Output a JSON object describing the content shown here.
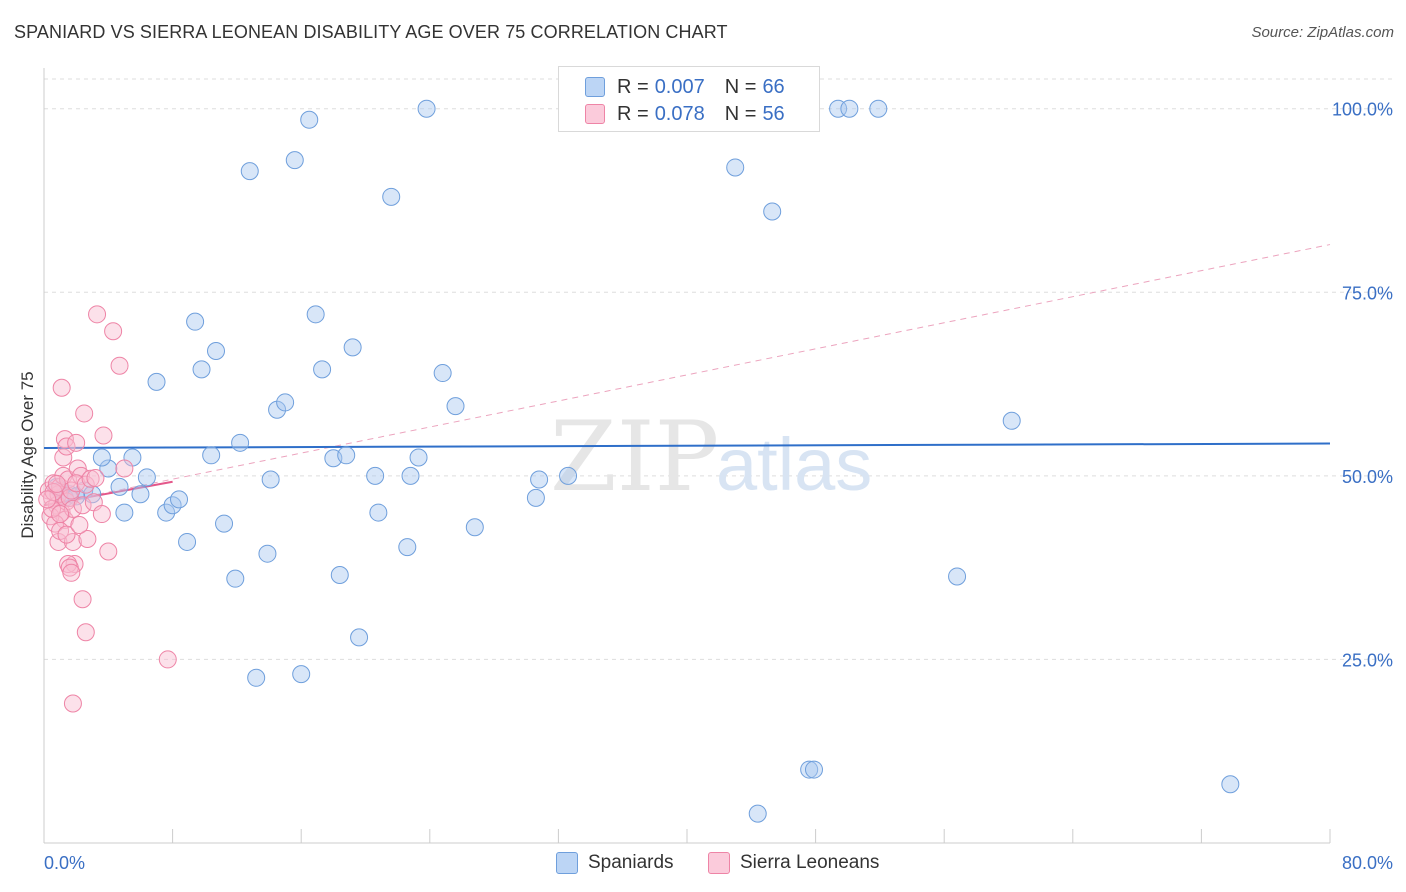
{
  "title": "SPANIARD VS SIERRA LEONEAN DISABILITY AGE OVER 75 CORRELATION CHART",
  "source": "Source: ZipAtlas.com",
  "watermark": {
    "zip": "ZIP",
    "atlas": "atlas"
  },
  "legend": [
    {
      "name": "Spaniards",
      "r_label": "R =",
      "r_value": "0.007",
      "n_label": "N =",
      "n_value": "66",
      "color": "#a9c8f0",
      "border": "#6f9fdc"
    },
    {
      "name": "Sierra Leoneans",
      "r_label": "R =",
      "r_value": "0.078",
      "n_label": "N =",
      "n_value": "56",
      "color": "#f9bcd0",
      "border": "#ee84a6"
    }
  ],
  "colors": {
    "blue_line": "#2f6fc9",
    "pink_line": "#e4578a",
    "axis_text": "#3a6fc4",
    "grid": "#dddddd"
  },
  "chart_data": {
    "type": "scatter",
    "title": "SPANIARD VS SIERRA LEONEAN DISABILITY AGE OVER 75 CORRELATION CHART",
    "xlabel": "",
    "ylabel": "Disability Age Over 75",
    "xlim": [
      0,
      80
    ],
    "ylim": [
      0,
      105
    ],
    "x_tick_labels": [
      "0.0%",
      "80.0%"
    ],
    "y_ticks": [
      25,
      50,
      75,
      100
    ],
    "y_tick_labels": [
      "25.0%",
      "50.0%",
      "75.0%",
      "100.0%"
    ],
    "series": [
      {
        "name": "Spaniards",
        "trend": {
          "x": [
            0,
            80
          ],
          "y": [
            53.8,
            54.4
          ],
          "style": "solid"
        },
        "points": [
          [
            1.0,
            48.0
          ],
          [
            1.6,
            47.5
          ],
          [
            2.5,
            48.0
          ],
          [
            3.0,
            47.5
          ],
          [
            4.0,
            51.0
          ],
          [
            3.6,
            52.5
          ],
          [
            4.7,
            48.5
          ],
          [
            5.0,
            45.0
          ],
          [
            5.5,
            52.5
          ],
          [
            6.0,
            47.5
          ],
          [
            6.4,
            49.8
          ],
          [
            7.0,
            62.8
          ],
          [
            7.6,
            45.0
          ],
          [
            8.0,
            46.0
          ],
          [
            8.4,
            46.8
          ],
          [
            8.9,
            41.0
          ],
          [
            9.4,
            71.0
          ],
          [
            9.8,
            64.5
          ],
          [
            10.4,
            52.8
          ],
          [
            10.7,
            67.0
          ],
          [
            11.2,
            43.5
          ],
          [
            11.9,
            36.0
          ],
          [
            12.2,
            54.5
          ],
          [
            12.8,
            91.5
          ],
          [
            13.2,
            22.5
          ],
          [
            13.9,
            39.4
          ],
          [
            14.1,
            49.5
          ],
          [
            14.5,
            59.0
          ],
          [
            15.0,
            60.0
          ],
          [
            15.6,
            93.0
          ],
          [
            16.0,
            23.0
          ],
          [
            16.5,
            98.5
          ],
          [
            16.9,
            72.0
          ],
          [
            17.3,
            64.5
          ],
          [
            18.0,
            52.4
          ],
          [
            18.4,
            36.5
          ],
          [
            18.8,
            52.8
          ],
          [
            19.2,
            67.5
          ],
          [
            19.6,
            28.0
          ],
          [
            20.6,
            50.0
          ],
          [
            20.8,
            45.0
          ],
          [
            21.6,
            88.0
          ],
          [
            22.6,
            40.3
          ],
          [
            22.8,
            50.0
          ],
          [
            23.3,
            52.5
          ],
          [
            23.8,
            100.0
          ],
          [
            24.8,
            64.0
          ],
          [
            25.6,
            59.5
          ],
          [
            26.8,
            43.0
          ],
          [
            30.6,
            47.0
          ],
          [
            30.8,
            49.5
          ],
          [
            32.6,
            50.0
          ],
          [
            43.0,
            92.0
          ],
          [
            44.4,
            4.0
          ],
          [
            45.3,
            86.0
          ],
          [
            47.6,
            10.0
          ],
          [
            47.9,
            10.0
          ],
          [
            49.4,
            100.0
          ],
          [
            50.1,
            100.0
          ],
          [
            51.9,
            100.0
          ],
          [
            56.8,
            36.3
          ],
          [
            60.2,
            57.5
          ],
          [
            73.8,
            8.0
          ],
          [
            1.3,
            47.0
          ],
          [
            0.8,
            48.5
          ],
          [
            2.0,
            47.2
          ]
        ]
      },
      {
        "name": "Sierra Leoneans",
        "trend": {
          "x": [
            0,
            8
          ],
          "y": [
            46.0,
            49.2
          ],
          "style": "solid"
        },
        "trend_extended": {
          "x": [
            0,
            80
          ],
          "y": [
            46.0,
            81.5
          ],
          "style": "dashed"
        },
        "points": [
          [
            0.3,
            48.0
          ],
          [
            0.5,
            47.0
          ],
          [
            0.6,
            49.0
          ],
          [
            0.8,
            46.0
          ],
          [
            0.9,
            47.5
          ],
          [
            1.0,
            48.5
          ],
          [
            1.1,
            45.0
          ],
          [
            1.2,
            50.0
          ],
          [
            1.3,
            44.0
          ],
          [
            1.4,
            46.5
          ],
          [
            1.5,
            49.5
          ],
          [
            1.6,
            47.0
          ],
          [
            1.7,
            48.0
          ],
          [
            0.4,
            44.5
          ],
          [
            0.7,
            43.5
          ],
          [
            0.9,
            41.0
          ],
          [
            1.0,
            42.5
          ],
          [
            1.2,
            52.5
          ],
          [
            1.3,
            55.0
          ],
          [
            1.4,
            54.0
          ],
          [
            1.1,
            62.0
          ],
          [
            1.8,
            45.5
          ],
          [
            1.8,
            41.0
          ],
          [
            1.9,
            38.0
          ],
          [
            1.5,
            38.0
          ],
          [
            1.6,
            37.5
          ],
          [
            1.7,
            36.8
          ],
          [
            2.0,
            54.5
          ],
          [
            2.1,
            51.0
          ],
          [
            2.3,
            50.0
          ],
          [
            2.4,
            46.0
          ],
          [
            2.0,
            49.0
          ],
          [
            2.6,
            48.8
          ],
          [
            2.7,
            41.4
          ],
          [
            2.5,
            58.5
          ],
          [
            2.9,
            49.6
          ],
          [
            3.1,
            46.4
          ],
          [
            3.3,
            72.0
          ],
          [
            3.2,
            49.7
          ],
          [
            3.6,
            44.8
          ],
          [
            3.7,
            55.5
          ],
          [
            4.0,
            39.7
          ],
          [
            4.3,
            69.7
          ],
          [
            4.7,
            65.0
          ],
          [
            5.0,
            51.0
          ],
          [
            7.7,
            25.0
          ],
          [
            2.4,
            33.2
          ],
          [
            2.6,
            28.7
          ],
          [
            1.8,
            19.0
          ],
          [
            0.5,
            45.5
          ],
          [
            0.6,
            47.8
          ],
          [
            0.2,
            46.8
          ],
          [
            0.8,
            48.9
          ],
          [
            1.0,
            44.8
          ],
          [
            1.4,
            42.0
          ],
          [
            2.2,
            43.3
          ]
        ]
      }
    ]
  }
}
